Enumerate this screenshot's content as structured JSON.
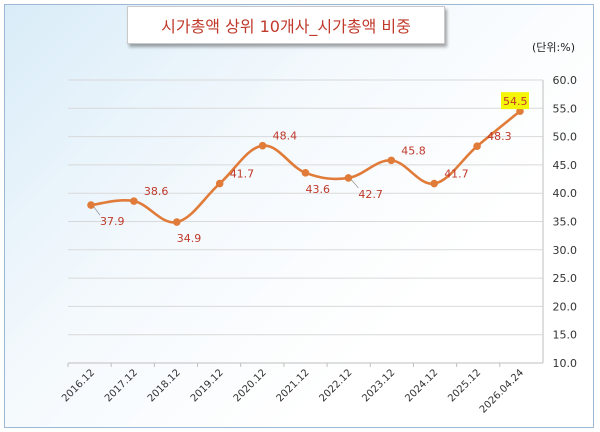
{
  "chart_data": {
    "type": "line",
    "title": "시가총액 상위 10개사_시가총액 비중",
    "unit_label": "(단위:%)",
    "categories": [
      "2016.12",
      "2017.12",
      "2018.12",
      "2019.12",
      "2020.12",
      "2021.12",
      "2022.12",
      "2023.12",
      "2024.12",
      "2025.12",
      "2026.04.24"
    ],
    "values": [
      37.9,
      38.6,
      34.9,
      41.7,
      48.4,
      43.6,
      42.7,
      45.8,
      41.7,
      48.3,
      54.5
    ],
    "data_labels": [
      "37.9",
      "38.6",
      "34.9",
      "41.7",
      "48.4",
      "43.6",
      "42.7",
      "45.8",
      "41.7",
      "48.3",
      "54.5"
    ],
    "y_ticks": [
      "10.0",
      "15.0",
      "20.0",
      "25.0",
      "30.0",
      "35.0",
      "40.0",
      "45.0",
      "50.0",
      "55.0",
      "60.0"
    ],
    "ylim": [
      10,
      60
    ],
    "grid": true,
    "y_axis_position": "right",
    "highlighted_point": "2026.04.24",
    "colors": {
      "line": "#e07b39",
      "marker": "#e07b39",
      "labels": "#c0392b",
      "title": "#c0392b",
      "highlight": "#f5f50a",
      "grid": "#d9d9d9"
    }
  }
}
